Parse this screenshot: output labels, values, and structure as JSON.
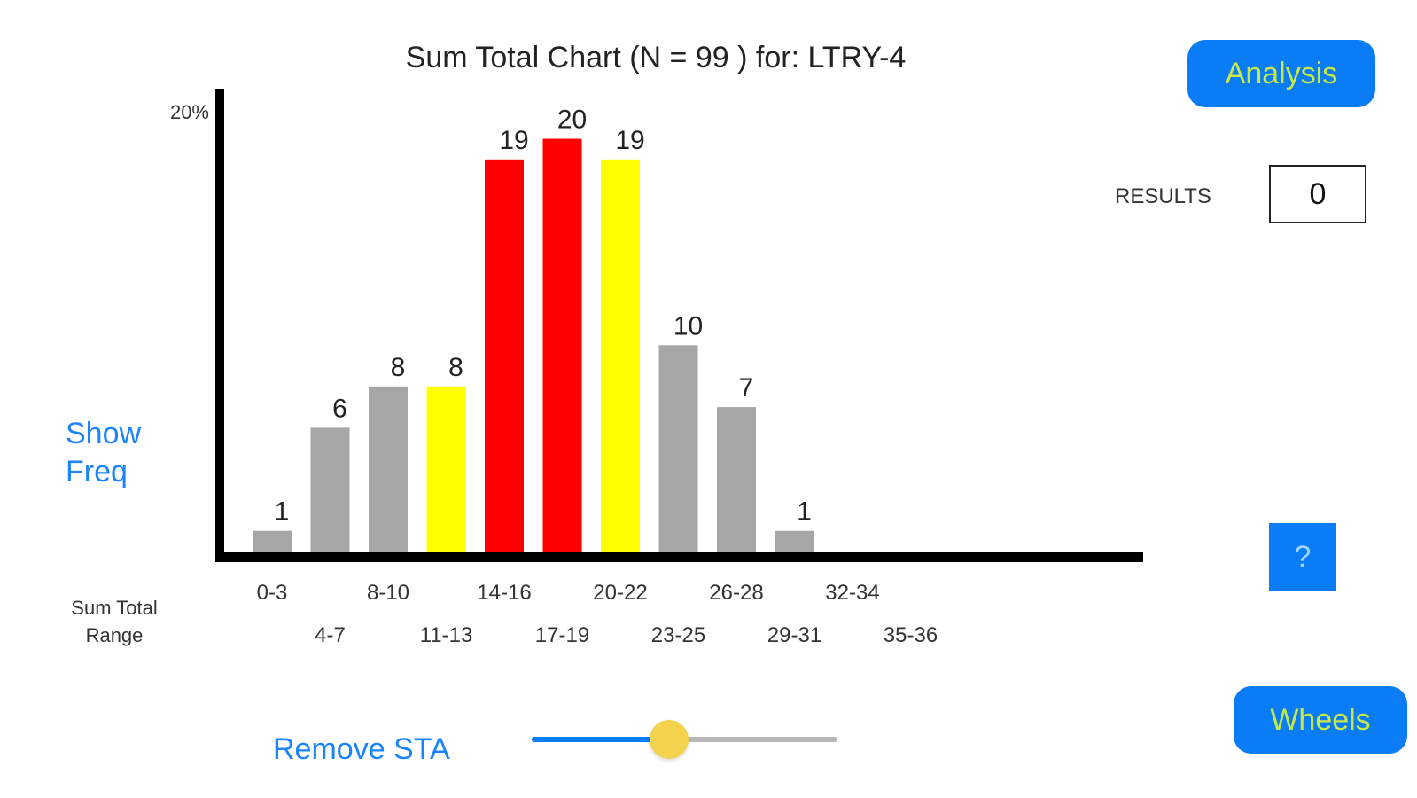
{
  "header": {
    "title": "Sum Total Chart (N =  99 ) for: LTRY-4",
    "analysis_label": "Analysis",
    "results_label": "RESULTS",
    "results_value": "0"
  },
  "left_panel": {
    "show_freq": "Show\nFreq",
    "range_label": "Sum Total\nRange"
  },
  "controls": {
    "remove_sta_label": "Remove STA",
    "slider_value": 0.45,
    "help_label": "?",
    "wheels_label": "Wheels"
  },
  "colors": {
    "button_blue": "#0a7cf5",
    "button_text": "#c8e84a",
    "link_blue": "#1a84ff",
    "bar_gray": "#a6a6a6",
    "bar_yellow": "#ffff00",
    "bar_red": "#ff0000",
    "slider_thumb": "#f3d24e"
  },
  "chart_data": {
    "type": "bar",
    "title": "Sum Total Chart (N =  99 ) for: LTRY-4",
    "xlabel": "Sum Total Range",
    "ylabel": "",
    "y_tick_label": "20%",
    "ylim": [
      0,
      22
    ],
    "grid": false,
    "categories": [
      "0-3",
      "4-7",
      "8-10",
      "11-13",
      "14-16",
      "17-19",
      "20-22",
      "23-25",
      "26-28",
      "29-31",
      "32-34",
      "35-36"
    ],
    "values": [
      1,
      6,
      8,
      8,
      19,
      20,
      19,
      10,
      7,
      1,
      0,
      0
    ],
    "bar_colors": [
      "gray",
      "gray",
      "gray",
      "yellow",
      "red",
      "red",
      "yellow",
      "gray",
      "gray",
      "gray",
      "gray",
      "gray"
    ]
  }
}
